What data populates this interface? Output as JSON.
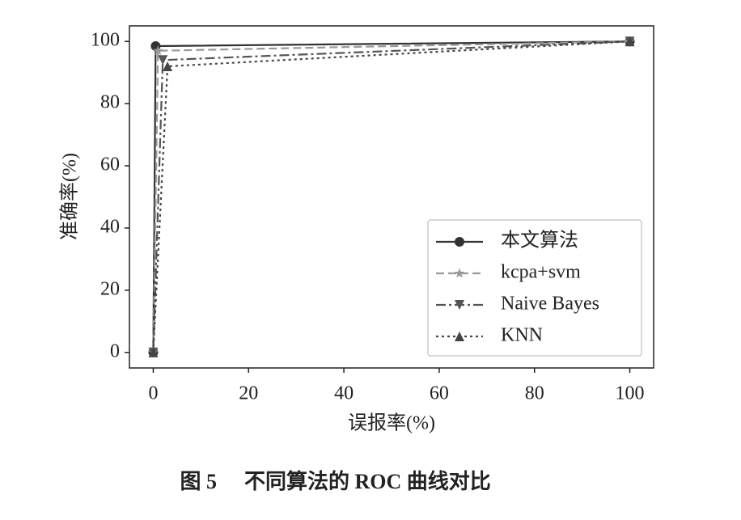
{
  "chart_data": {
    "type": "line",
    "xlabel": "误报率(%)",
    "ylabel": "准确率(%)",
    "figure_label": "图 5",
    "caption": "不同算法的 ROC 曲线对比",
    "xlim": [
      -5,
      105
    ],
    "ylim": [
      -5,
      105
    ],
    "xticks": [
      0,
      20,
      40,
      60,
      80,
      100
    ],
    "yticks": [
      0,
      20,
      40,
      60,
      80,
      100
    ],
    "legend": "lower right",
    "series": [
      {
        "name": "本文算法",
        "color": "#333333",
        "dash": "solid",
        "marker": "circle",
        "x": [
          0,
          0.5,
          100
        ],
        "values": [
          0,
          98.5,
          100
        ]
      },
      {
        "name": "kcpa+svm",
        "color": "#999999",
        "dash": "dashed",
        "marker": "star",
        "x": [
          0,
          1,
          100
        ],
        "values": [
          0,
          97,
          100
        ]
      },
      {
        "name": "Naive Bayes",
        "color": "#555555",
        "dash": "dashdot",
        "marker": "triangle-down",
        "x": [
          0,
          2,
          100
        ],
        "values": [
          0,
          94,
          100
        ]
      },
      {
        "name": "KNN",
        "color": "#444444",
        "dash": "dotted",
        "marker": "triangle-up",
        "x": [
          0,
          3,
          100
        ],
        "values": [
          0,
          92,
          100
        ]
      }
    ]
  }
}
